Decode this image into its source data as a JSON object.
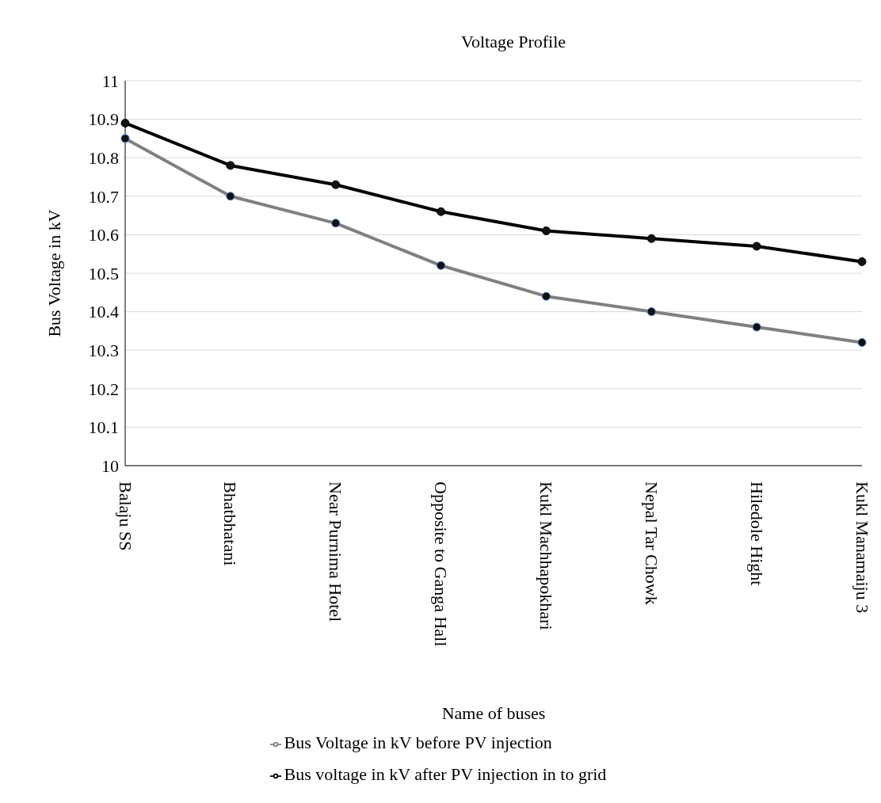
{
  "chart_data": {
    "type": "line",
    "title": "Voltage Profile",
    "xlabel": "Name of buses",
    "ylabel": "Bus Voltage in kV",
    "categories": [
      "Balaju SS",
      "Bhatbhatani",
      "Near Purnima Hotel",
      "Opposite to Ganga Hall",
      "Kukl Machhapokhari",
      "Nepal Tar Chowk",
      "Hiledole Hight",
      "Kukl Manamaiju 3"
    ],
    "series": [
      {
        "name": "Bus Voltage in kV before PV injection",
        "color": "#808080",
        "values": [
          10.85,
          10.7,
          10.63,
          10.52,
          10.44,
          10.4,
          10.36,
          10.32
        ]
      },
      {
        "name": "Bus voltage in kV after PV injection in to grid",
        "color": "#000000",
        "values": [
          10.89,
          10.78,
          10.73,
          10.66,
          10.61,
          10.59,
          10.57,
          10.53
        ]
      }
    ],
    "ylim": [
      10,
      11
    ],
    "yticks": [
      10,
      10.1,
      10.2,
      10.3,
      10.4,
      10.5,
      10.6,
      10.7,
      10.8,
      10.9,
      11
    ],
    "grid": "y",
    "legend": "bottom",
    "marker": "circle",
    "line_style": "solid"
  }
}
